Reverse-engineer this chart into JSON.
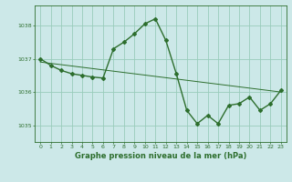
{
  "title": "Graphe pression niveau de la mer (hPa)",
  "background_color": "#cce8e8",
  "grid_color": "#99ccbb",
  "line_color": "#2d6e2d",
  "xlim": [
    -0.5,
    23.5
  ],
  "ylim": [
    1034.5,
    1038.6
  ],
  "yticks": [
    1035,
    1036,
    1037,
    1038
  ],
  "xticks": [
    0,
    1,
    2,
    3,
    4,
    5,
    6,
    7,
    8,
    9,
    10,
    11,
    12,
    13,
    14,
    15,
    16,
    17,
    18,
    19,
    20,
    21,
    22,
    23
  ],
  "trend_x": [
    0,
    23
  ],
  "trend_y": [
    1036.9,
    1036.0
  ],
  "series_x": [
    0,
    1,
    2,
    3,
    4,
    5,
    6,
    7,
    8,
    9,
    10,
    11,
    12,
    13,
    14,
    15,
    16,
    17,
    18,
    19,
    20,
    21,
    22,
    23
  ],
  "series_y": [
    1037.0,
    1036.8,
    1036.65,
    1036.55,
    1036.5,
    1036.45,
    1036.42,
    1037.3,
    1037.5,
    1037.75,
    1038.05,
    1038.2,
    1037.55,
    1036.55,
    1035.45,
    1035.05,
    1035.3,
    1035.05,
    1035.6,
    1035.65,
    1035.85,
    1035.45,
    1035.65,
    1036.05
  ],
  "marker": "D",
  "markersize": 2.0,
  "linewidth_trend": 0.7,
  "linewidth_main": 1.0,
  "title_fontsize": 6.0,
  "tick_fontsize": 4.5,
  "label_color": "#2d6e2d",
  "spine_color": "#2d6e2d"
}
